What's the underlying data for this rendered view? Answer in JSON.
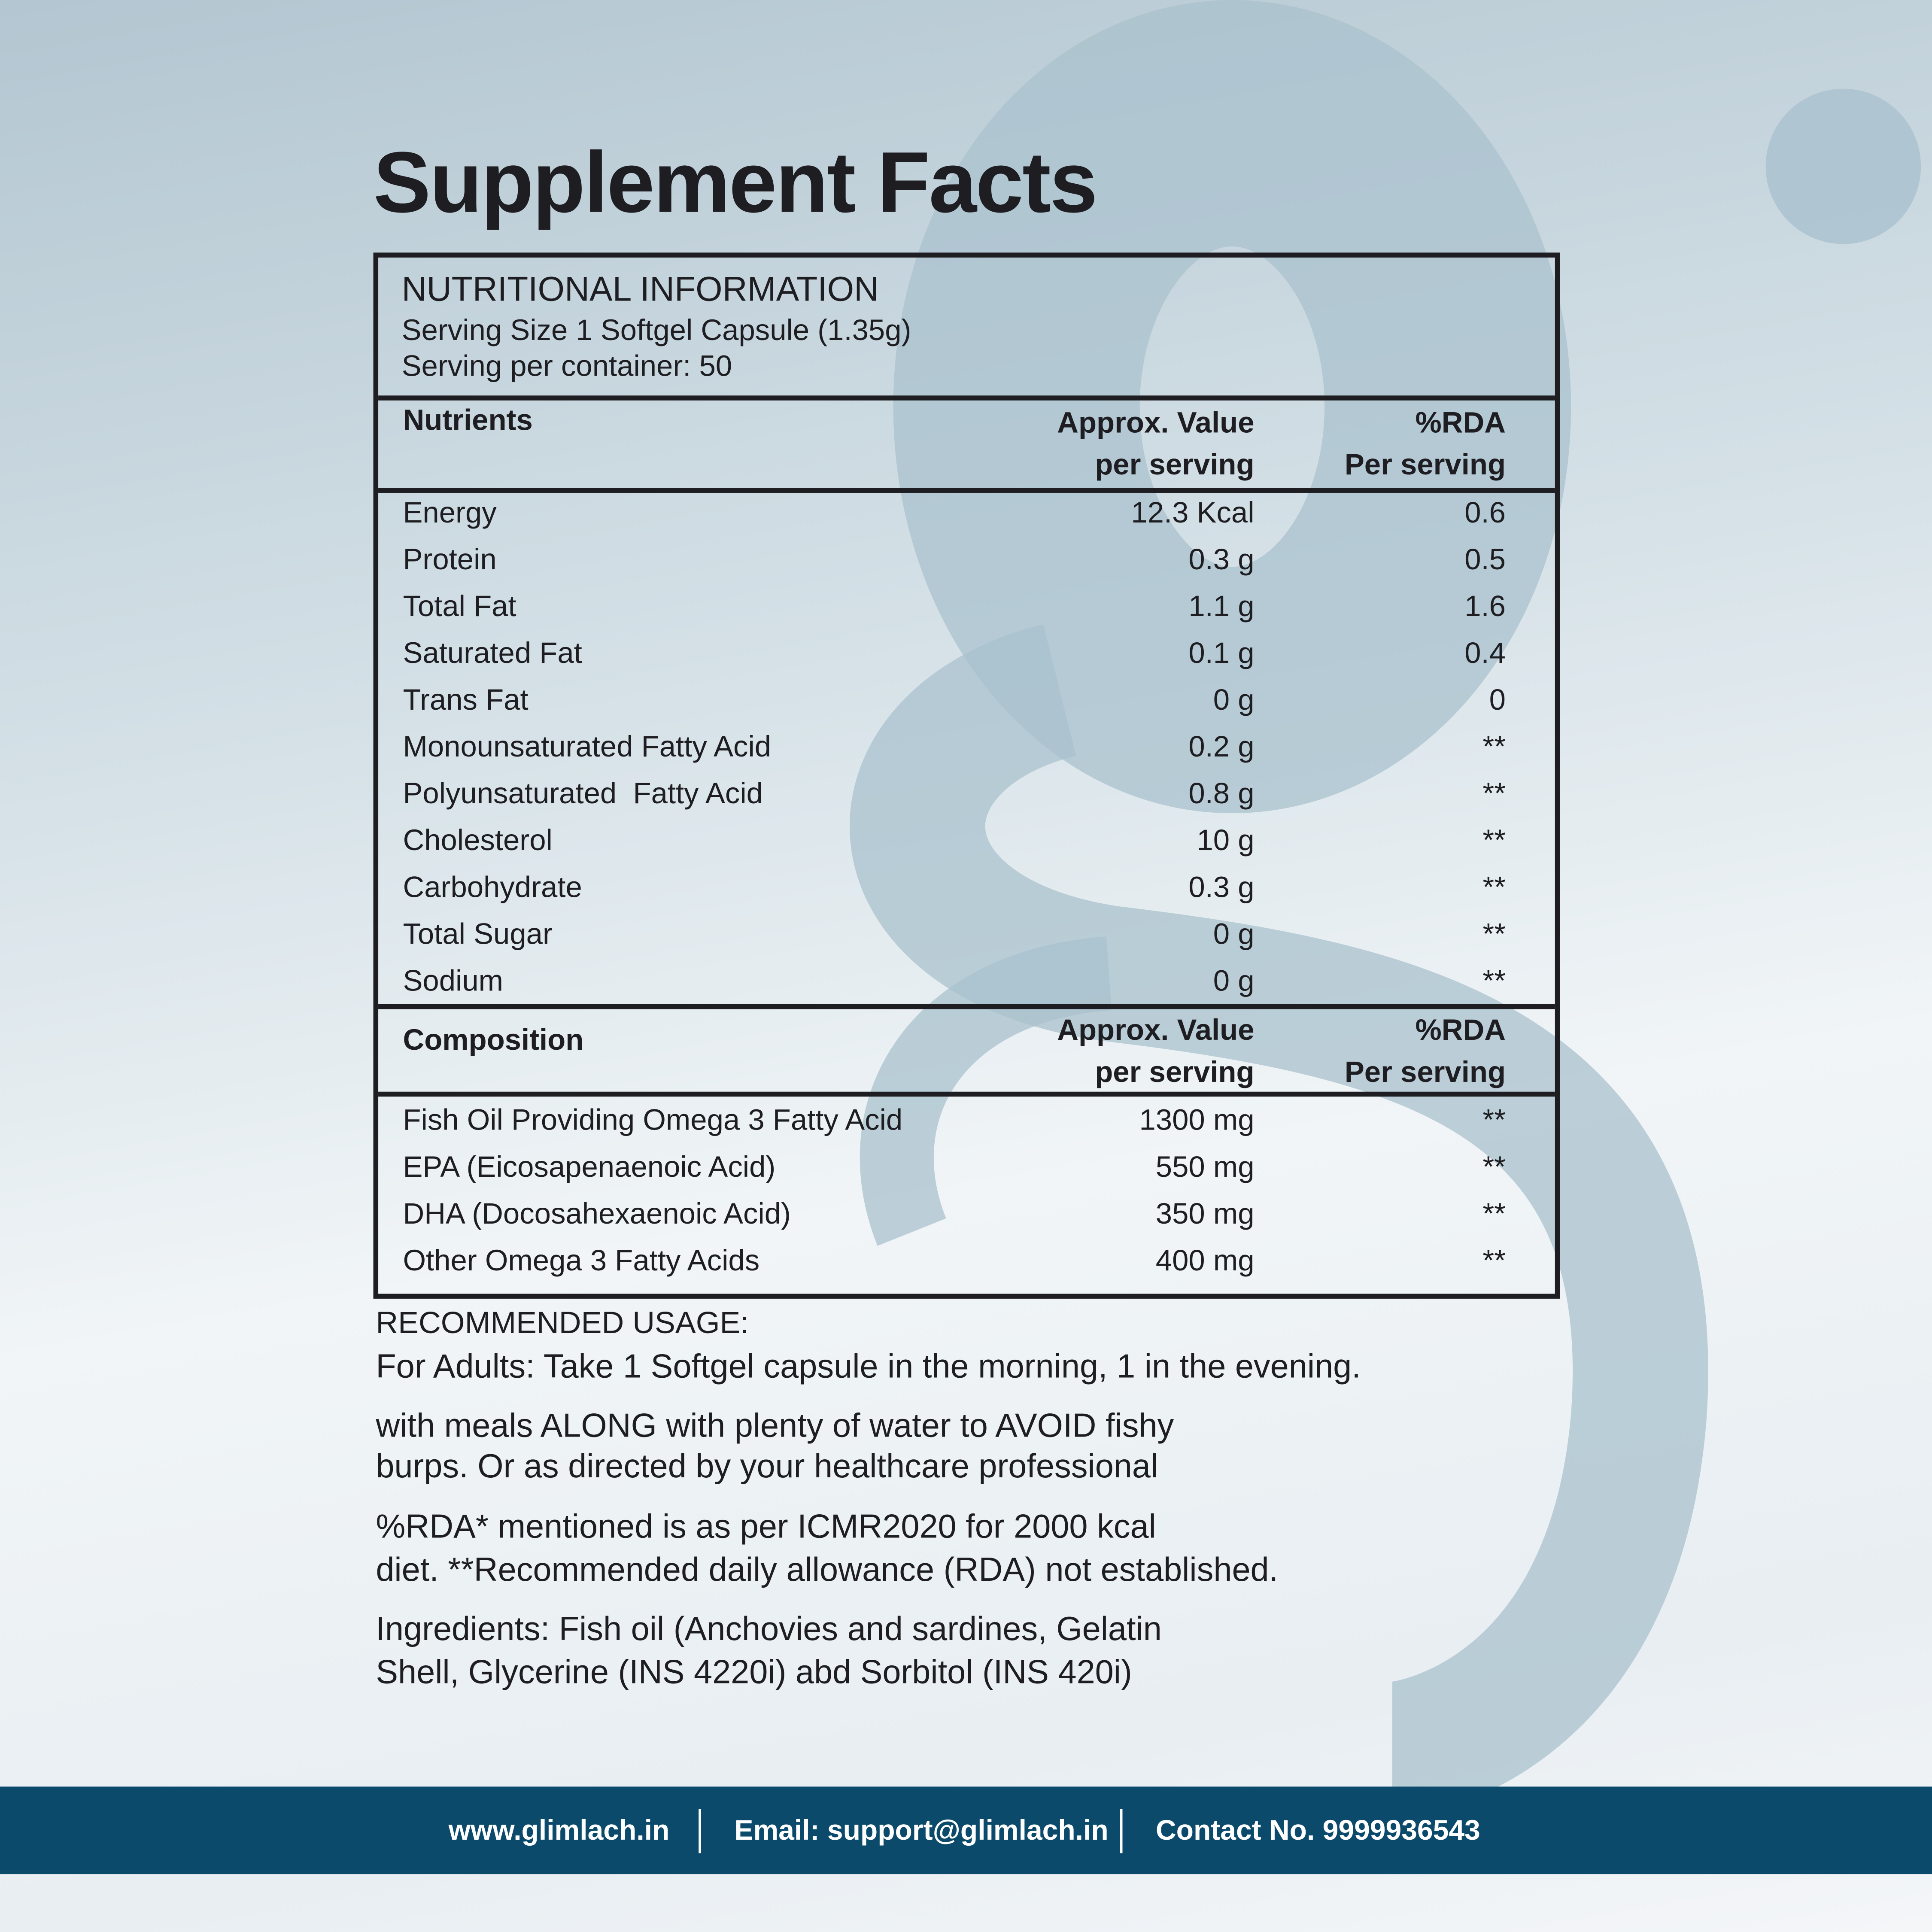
{
  "title": "Supplement Facts",
  "info": {
    "heading": "NUTRITIONAL INFORMATION",
    "serving_size": "Serving Size 1 Softgel Capsule (1.35g)",
    "servings": "Serving per container: 50"
  },
  "nutrients": {
    "header": {
      "name": "Nutrients",
      "value": [
        "Approx. Value",
        "per serving"
      ],
      "rda": [
        "%RDA",
        "Per serving"
      ]
    },
    "rows": [
      [
        "Energy",
        "12.3 Kcal",
        "0.6"
      ],
      [
        "Protein",
        "0.3 g",
        "0.5"
      ],
      [
        "Total Fat",
        "1.1 g",
        "1.6"
      ],
      [
        "Saturated Fat",
        "0.1 g",
        "0.4"
      ],
      [
        "Trans Fat",
        "0 g",
        "0"
      ],
      [
        "Monounsaturated Fatty Acid",
        "0.2 g",
        "**"
      ],
      [
        "Polyunsaturated  Fatty Acid",
        "0.8 g",
        "**"
      ],
      [
        "Cholesterol",
        "10 g",
        "**"
      ],
      [
        "Carbohydrate",
        "0.3 g",
        "**"
      ],
      [
        "Total Sugar",
        "0 g",
        "**"
      ],
      [
        "Sodium",
        "0 g",
        "**"
      ]
    ]
  },
  "composition": {
    "header": {
      "name": "Composition",
      "value": [
        "Approx. Value",
        "per serving"
      ],
      "rda": [
        "%RDA",
        "Per serving"
      ]
    },
    "rows": [
      [
        "Fish Oil Providing Omega 3 Fatty Acid",
        "1300 mg",
        "**"
      ],
      [
        "EPA (Eicosapenaenoic Acid)",
        "550 mg",
        "**"
      ],
      [
        "DHA (Docosahexaenoic Acid)",
        "350 mg",
        "**"
      ],
      [
        "Other Omega 3 Fatty Acids",
        "400 mg",
        "**"
      ]
    ]
  },
  "usage": {
    "heading": "RECOMMENDED USAGE:",
    "paragraphs": [
      [
        "For Adults: Take 1 Softgel capsule in the morning, 1 in the evening."
      ],
      [
        "with meals ALONG with plenty of water to AVOID fishy",
        "burps. Or as directed by your healthcare professional"
      ],
      [
        "%RDA* mentioned is as per ICMR2020 for 2000 kcal",
        "diet. **Recommended daily allowance (RDA) not established."
      ],
      [
        "Ingredients: Fish oil (Anchovies and sardines, Gelatin",
        "Shell, Glycerine (INS 4220i) abd Sorbitol (INS 420i)"
      ]
    ]
  },
  "footer": [
    "www.glimlach.in",
    "Email: support@glimlach.in",
    "Contact No. 9999936543"
  ]
}
